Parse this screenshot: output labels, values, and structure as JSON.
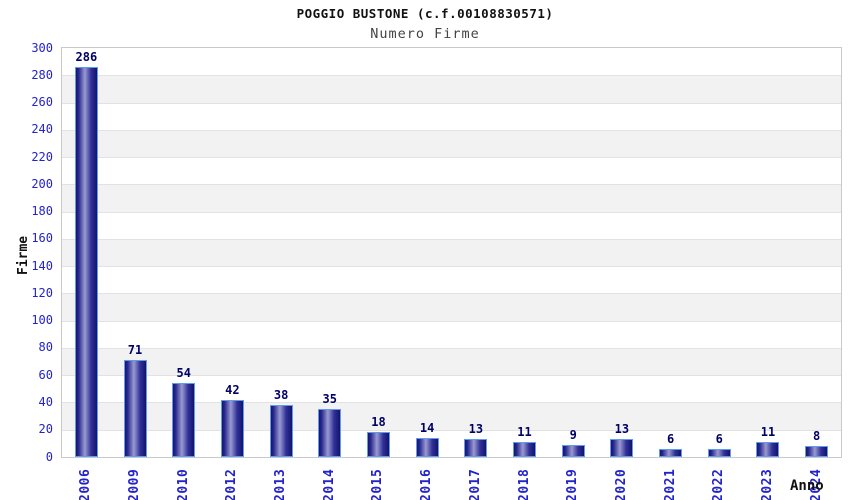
{
  "header": {
    "title": "POGGIO BUSTONE (c.f.00108830571)",
    "subtitle": "Numero Firme"
  },
  "chart_data": {
    "type": "bar",
    "title": "POGGIO BUSTONE (c.f.00108830571)",
    "subtitle": "Numero Firme",
    "xlabel": "Anno",
    "ylabel": "Firme",
    "categories": [
      "2006",
      "2009",
      "2010",
      "2012",
      "2013",
      "2014",
      "2015",
      "2016",
      "2017",
      "2018",
      "2019",
      "2020",
      "2021",
      "2022",
      "2023",
      "2024"
    ],
    "values": [
      286,
      71,
      54,
      42,
      38,
      35,
      18,
      14,
      13,
      11,
      9,
      13,
      6,
      6,
      11,
      8
    ],
    "ylim": [
      0,
      300
    ],
    "ytick_step": 20,
    "grid": "horizontal-bands",
    "legend": "none",
    "colors": {
      "tick_label": "#2323cc",
      "value_label": "#000066",
      "bar_border": "#5f9bef",
      "bar_dark": "#1a1a7e",
      "bar_highlight": "#9a9ad0",
      "band_gray": "#f2f2f2",
      "band_white": "#ffffff",
      "plot_border": "#c9c9c9",
      "title_color": "#111111",
      "subtitle_color": "#444444"
    }
  }
}
